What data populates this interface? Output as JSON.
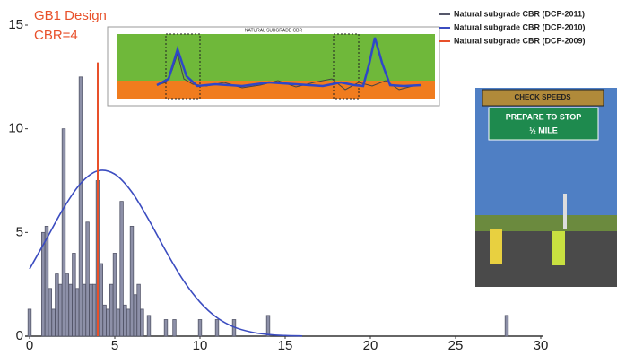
{
  "chart_data": {
    "type": "bar",
    "annotation": [
      "GB1 Design",
      "CBR=4"
    ],
    "xlim": [
      0,
      30
    ],
    "xticks": [
      0,
      5,
      10,
      15,
      20,
      25,
      30
    ],
    "ylim": [
      0,
      15
    ],
    "yticks": [
      0,
      5,
      10,
      15
    ],
    "series": [
      {
        "name": "Natural subgrade CBR (DCP-2011)",
        "color": "#55576a",
        "type": "bar",
        "x": [
          0.0,
          0.8,
          1.0,
          1.2,
          1.4,
          1.6,
          1.8,
          2.0,
          2.2,
          2.4,
          2.6,
          2.8,
          3.0,
          3.2,
          3.4,
          3.6,
          3.8,
          4.0,
          4.2,
          4.4,
          4.6,
          4.8,
          5.0,
          5.2,
          5.4,
          5.6,
          5.8,
          6.0,
          6.2,
          6.4,
          6.6,
          7.0,
          8.0,
          8.5,
          10.0,
          11.0,
          12.0,
          14.0,
          28.0
        ],
        "values": [
          1.3,
          5.0,
          5.3,
          2.3,
          1.3,
          3.0,
          2.5,
          10.0,
          3.0,
          2.5,
          4.0,
          2.3,
          12.5,
          2.5,
          5.5,
          2.5,
          2.5,
          7.5,
          3.5,
          1.5,
          1.3,
          2.5,
          4.0,
          1.3,
          6.5,
          1.5,
          1.3,
          5.3,
          2.0,
          2.5,
          1.3,
          1.0,
          0.8,
          0.8,
          0.8,
          0.8,
          0.8,
          1.0,
          1.0
        ]
      },
      {
        "name": "Natural subgrade CBR (DCP-2010)",
        "color": "#3b4cc0",
        "type": "line",
        "x": [
          0,
          1,
          2,
          3,
          4,
          5,
          6,
          7,
          8,
          9,
          10,
          11,
          12,
          13,
          14,
          15,
          16
        ],
        "values": [
          3.24,
          4.7,
          6.18,
          7.37,
          7.97,
          7.81,
          6.95,
          5.6,
          4.1,
          2.72,
          1.64,
          0.89,
          0.44,
          0.2,
          0.08,
          0.03,
          0.01
        ]
      },
      {
        "name": "Natural subgrade CBR (DCP-2009)",
        "color": "#e8502a",
        "type": "vline",
        "x": [
          4
        ],
        "values": [
          13.2
        ]
      }
    ]
  },
  "inset": {
    "title": "NATURAL SUBGRADE CBR"
  },
  "photo": {
    "sign_top": "CHECK SPEEDS",
    "sign_main": "PREPARE TO STOP",
    "sign_sub": "½ MILE"
  }
}
